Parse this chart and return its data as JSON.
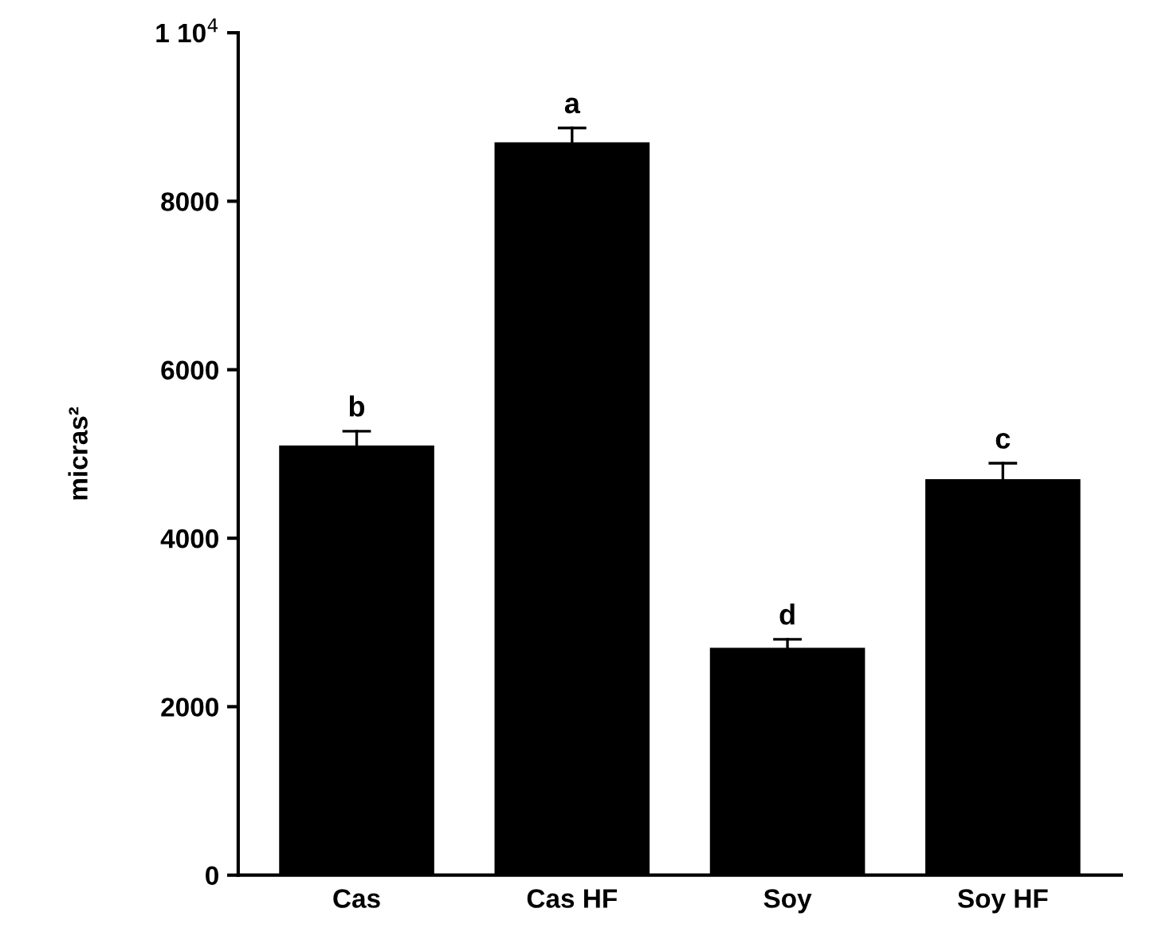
{
  "chart_data": {
    "type": "bar",
    "ylabel": "micras²",
    "categories": [
      "Cas",
      "Cas HF",
      "Soy",
      "Soy HF"
    ],
    "values": [
      5100,
      8700,
      2700,
      4700
    ],
    "errors": [
      [
        5100,
        5270
      ],
      [
        8700,
        8870
      ],
      [
        2700,
        2800
      ],
      [
        4700,
        4890
      ]
    ],
    "color": "#000000",
    "ylim": [
      0,
      10000
    ],
    "yticks": [
      0,
      2000,
      4000,
      6000,
      8000,
      {
        "value": 10000,
        "label": "1 10$^{4}$"
      }
    ],
    "annotations": [
      {
        "text": "b",
        "x": "Cas",
        "y": 5270
      },
      {
        "text": "a",
        "x": "Cas HF",
        "y": 8870
      },
      {
        "text": "d",
        "x": "Soy",
        "y": 2800
      },
      {
        "text": "c",
        "x": "Soy HF",
        "y": 4890
      }
    ],
    "grid": false,
    "legend": false
  }
}
